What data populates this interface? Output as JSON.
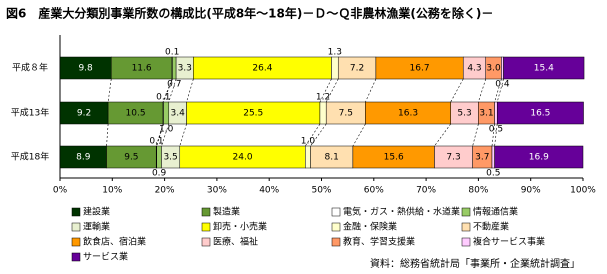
{
  "chart_data": {
    "type": "stacked-bar-horizontal-100",
    "title": "図6　産業大分類別事業所数の構成比(平成8年～18年)－Ｄ～Ｑ非農林漁業(公務を除く)－",
    "source": "資料：総務省統計局「事業所・企業統計調査」",
    "categories": [
      "平成８年",
      "平成13年",
      "平成18年"
    ],
    "xlim": [
      0,
      100
    ],
    "xticks": [
      {
        "value": 0,
        "label": "0%"
      },
      {
        "value": 10,
        "label": "10%"
      },
      {
        "value": 20,
        "label": "20%"
      },
      {
        "value": 30,
        "label": "30%"
      },
      {
        "value": 40,
        "label": "40%"
      },
      {
        "value": 50,
        "label": "50%"
      },
      {
        "value": 60,
        "label": "60%"
      },
      {
        "value": 70,
        "label": "70%"
      },
      {
        "value": 80,
        "label": "80%"
      },
      {
        "value": 90,
        "label": "90%"
      },
      {
        "value": 100,
        "label": "100%"
      }
    ],
    "series": [
      {
        "name": "建設業",
        "color": "#003300",
        "values": [
          9.8,
          9.2,
          8.9
        ]
      },
      {
        "name": "製造業",
        "color": "#669933",
        "values": [
          11.6,
          10.5,
          9.5
        ]
      },
      {
        "name": "電気・ガス・熱供給・水道業",
        "color": "#ffffff",
        "values": [
          0.1,
          0.1,
          0.1
        ]
      },
      {
        "name": "情報通信業",
        "color": "#99cc66",
        "values": [
          0.7,
          1.0,
          0.9
        ],
        "value_labels": [
          "0.7",
          "1.0",
          "0.9"
        ]
      },
      {
        "name": "運輸業",
        "color": "#e8f0d0",
        "values": [
          3.3,
          3.4,
          3.5
        ]
      },
      {
        "name": "卸売・小売業",
        "color": "#ffff00",
        "values": [
          26.4,
          25.5,
          24.0
        ],
        "value_labels": [
          "26.4",
          "25.5",
          "24.0"
        ]
      },
      {
        "name": "金融・保険業",
        "color": "#ffffcc",
        "values": [
          1.3,
          1.2,
          1.0
        ],
        "value_labels": [
          "1.3",
          "1.2",
          "1.0"
        ]
      },
      {
        "name": "不動産業",
        "color": "#ffe0b0",
        "values": [
          7.2,
          7.5,
          8.1
        ]
      },
      {
        "name": "飲食店、宿泊業",
        "color": "#ff9900",
        "values": [
          16.7,
          16.3,
          15.6
        ]
      },
      {
        "name": "医療、福祉",
        "color": "#ffcccc",
        "values": [
          4.3,
          5.3,
          7.3
        ]
      },
      {
        "name": "教育、学習支援業",
        "color": "#ff9966",
        "values": [
          3.0,
          3.1,
          3.7
        ],
        "value_labels": [
          "3.0",
          "3.1",
          "3.7"
        ]
      },
      {
        "name": "複合サービス事業",
        "color": "#ffccff",
        "values": [
          0.4,
          0.5,
          0.5
        ]
      },
      {
        "name": "サービス業",
        "color": "#660099",
        "values": [
          15.4,
          16.5,
          16.9
        ]
      }
    ]
  }
}
